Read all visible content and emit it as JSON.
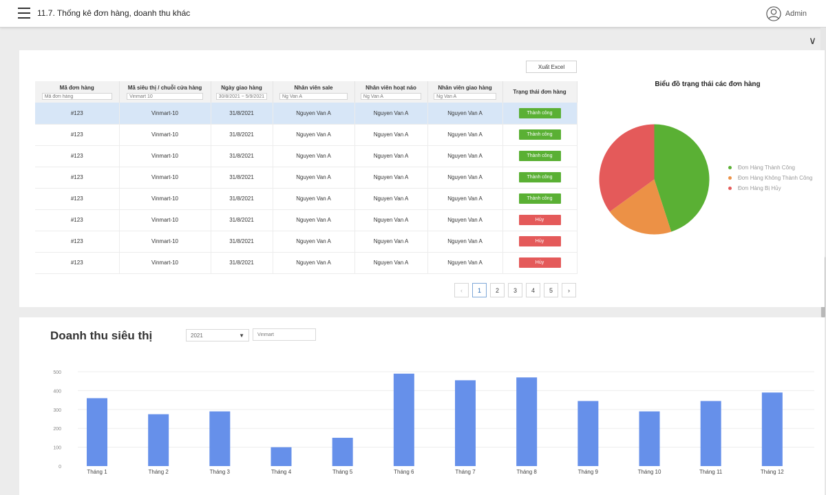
{
  "header": {
    "title": "11.7. Thống kê đơn hàng, doanh thu khác",
    "user": "Admin"
  },
  "toolbar": {
    "export_label": "Xuất Excel"
  },
  "table": {
    "columns": [
      {
        "label": "Mã đơn hàng",
        "filter": "Mã đơn hàng"
      },
      {
        "label": "Mã siêu thị / chuỗi cửa hàng",
        "filter": "Vinmart 10"
      },
      {
        "label": "Ngày giao hàng",
        "filter": "30/8/2021 ~ 5/9/2021"
      },
      {
        "label": "Nhân viên sale",
        "filter": "Ng Van A"
      },
      {
        "label": "Nhân viên hoạt náo",
        "filter": "Ng Van A"
      },
      {
        "label": "Nhân viên giao hàng",
        "filter": "Ng Van A"
      },
      {
        "label": "Trạng thái đơn hàng",
        "filter": ""
      }
    ],
    "rows": [
      {
        "order_id": "#123",
        "store": "Vinmart-10",
        "date": "31/8/2021",
        "sale": "Nguyen Van A",
        "activity": "Nguyen Van A",
        "delivery": "Nguyen Van A",
        "status": "Thành công",
        "status_type": "success"
      },
      {
        "order_id": "#123",
        "store": "Vinmart-10",
        "date": "31/8/2021",
        "sale": "Nguyen Van A",
        "activity": "Nguyen Van A",
        "delivery": "Nguyen Van A",
        "status": "Thành công",
        "status_type": "success"
      },
      {
        "order_id": "#123",
        "store": "Vinmart-10",
        "date": "31/8/2021",
        "sale": "Nguyen Van A",
        "activity": "Nguyen Van A",
        "delivery": "Nguyen Van A",
        "status": "Thành công",
        "status_type": "success"
      },
      {
        "order_id": "#123",
        "store": "Vinmart-10",
        "date": "31/8/2021",
        "sale": "Nguyen Van A",
        "activity": "Nguyen Van A",
        "delivery": "Nguyen Van A",
        "status": "Thành công",
        "status_type": "success"
      },
      {
        "order_id": "#123",
        "store": "Vinmart-10",
        "date": "31/8/2021",
        "sale": "Nguyen Van A",
        "activity": "Nguyen Van A",
        "delivery": "Nguyen Van A",
        "status": "Thành công",
        "status_type": "success"
      },
      {
        "order_id": "#123",
        "store": "Vinmart-10",
        "date": "31/8/2021",
        "sale": "Nguyen Van A",
        "activity": "Nguyen Van A",
        "delivery": "Nguyen Van A",
        "status": "Hủy",
        "status_type": "cancel"
      },
      {
        "order_id": "#123",
        "store": "Vinmart-10",
        "date": "31/8/2021",
        "sale": "Nguyen Van A",
        "activity": "Nguyen Van A",
        "delivery": "Nguyen Van A",
        "status": "Hủy",
        "status_type": "cancel"
      },
      {
        "order_id": "#123",
        "store": "Vinmart-10",
        "date": "31/8/2021",
        "sale": "Nguyen Van A",
        "activity": "Nguyen Van A",
        "delivery": "Nguyen Van A",
        "status": "Hủy",
        "status_type": "cancel"
      }
    ],
    "selected_row": 0
  },
  "pagination": {
    "pages": [
      "1",
      "2",
      "3",
      "4",
      "5"
    ],
    "current": "1",
    "prev_icon": "chevron-left-icon",
    "next_icon": "chevron-right-icon"
  },
  "revenue": {
    "title": "Doanh thu siêu thị",
    "year_select": "2021",
    "store_input_placeholder": "Vinmart"
  },
  "colors": {
    "success": "#5ab034",
    "cancel": "#e45a5a",
    "orange": "#ec9146",
    "bar": "#6690ea",
    "selected_row": "#d7e6f7"
  },
  "chart_data": [
    {
      "type": "pie",
      "title": "Biểu đồ trạng thái các đơn hàng",
      "categories": [
        "Đơn Hàng Thành Công",
        "Đơn Hàng Không Thành Công",
        "Đơn Hàng Bị Hủy"
      ],
      "values": [
        45,
        20,
        35
      ],
      "colors": [
        "#5ab034",
        "#ec9146",
        "#e45a5a"
      ],
      "legend": "right"
    },
    {
      "type": "bar",
      "title": "",
      "categories": [
        "Tháng 1",
        "Tháng 2",
        "Tháng 3",
        "Tháng 4",
        "Tháng 5",
        "Tháng 6",
        "Tháng 7",
        "Tháng 8",
        "Tháng 9",
        "Tháng 10",
        "Tháng 11",
        "Tháng 12"
      ],
      "values": [
        360,
        275,
        290,
        100,
        150,
        490,
        455,
        470,
        345,
        290,
        345,
        390
      ],
      "yticks": [
        0,
        100,
        200,
        300,
        400,
        500
      ],
      "ylim": [
        0,
        500
      ],
      "grid": true,
      "color": "#6690ea"
    }
  ]
}
